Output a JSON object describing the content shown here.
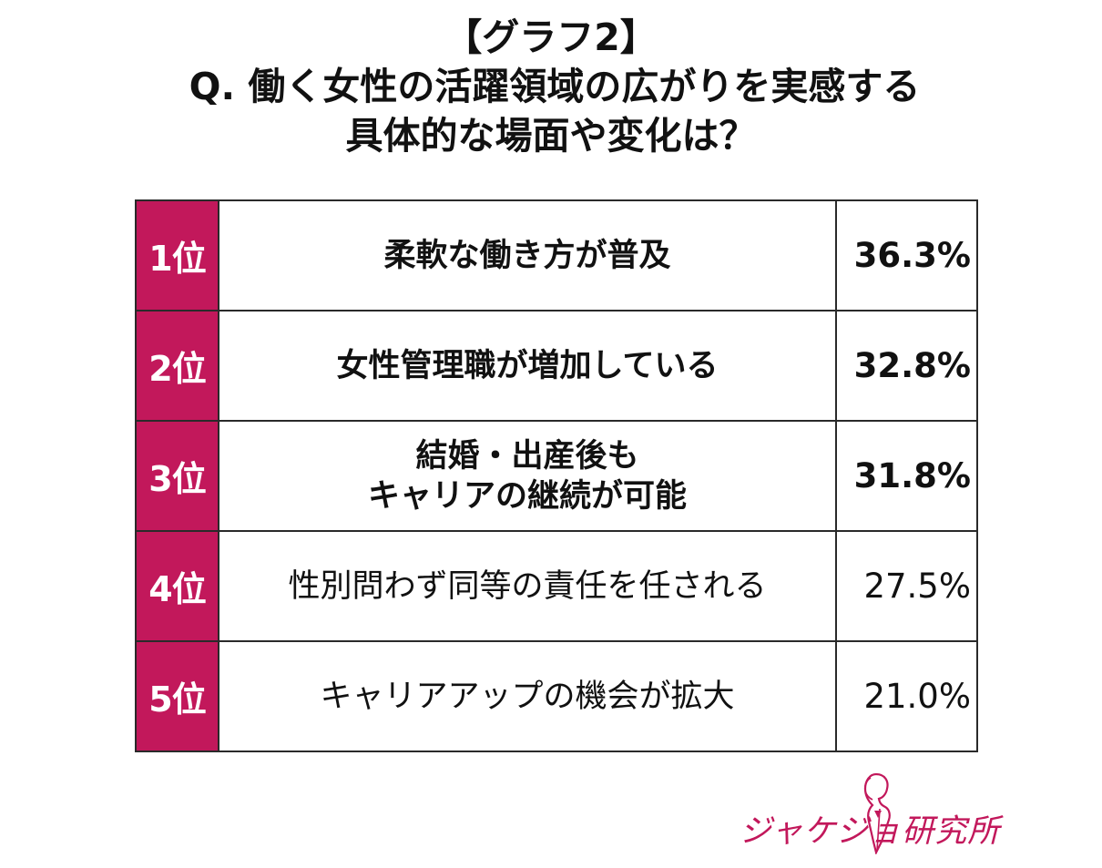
{
  "title": {
    "line1": "【グラフ2】",
    "line2": "Q. 働く女性の活躍領域の広がりを実感する",
    "line3": "具体的な場面や変化は？"
  },
  "chart_data": {
    "type": "table",
    "columns": [
      "rank",
      "item",
      "percent"
    ],
    "rows": [
      {
        "rank": "1位",
        "item": "柔軟な働き方が普及",
        "percent": "36.3%",
        "value": 36.3,
        "bold": true
      },
      {
        "rank": "2位",
        "item": "女性管理職が増加している",
        "percent": "32.8%",
        "value": 32.8,
        "bold": true
      },
      {
        "rank": "3位",
        "item": "結婚・出産後も\nキャリアの継続が可能",
        "percent": "31.8%",
        "value": 31.8,
        "bold": true
      },
      {
        "rank": "4位",
        "item": "性別問わず同等の責任を任される",
        "percent": "27.5%",
        "value": 27.5,
        "bold": false
      },
      {
        "rank": "5位",
        "item": "キャリアアップの機会が拡大",
        "percent": "21.0%",
        "value": 21.0,
        "bold": false
      }
    ]
  },
  "colors": {
    "accent": "#c2185b",
    "text": "#111111",
    "border": "#2a2a2a"
  },
  "logo": {
    "text": "ジャケジョ研究所",
    "icon": "woman-silhouette-icon"
  }
}
